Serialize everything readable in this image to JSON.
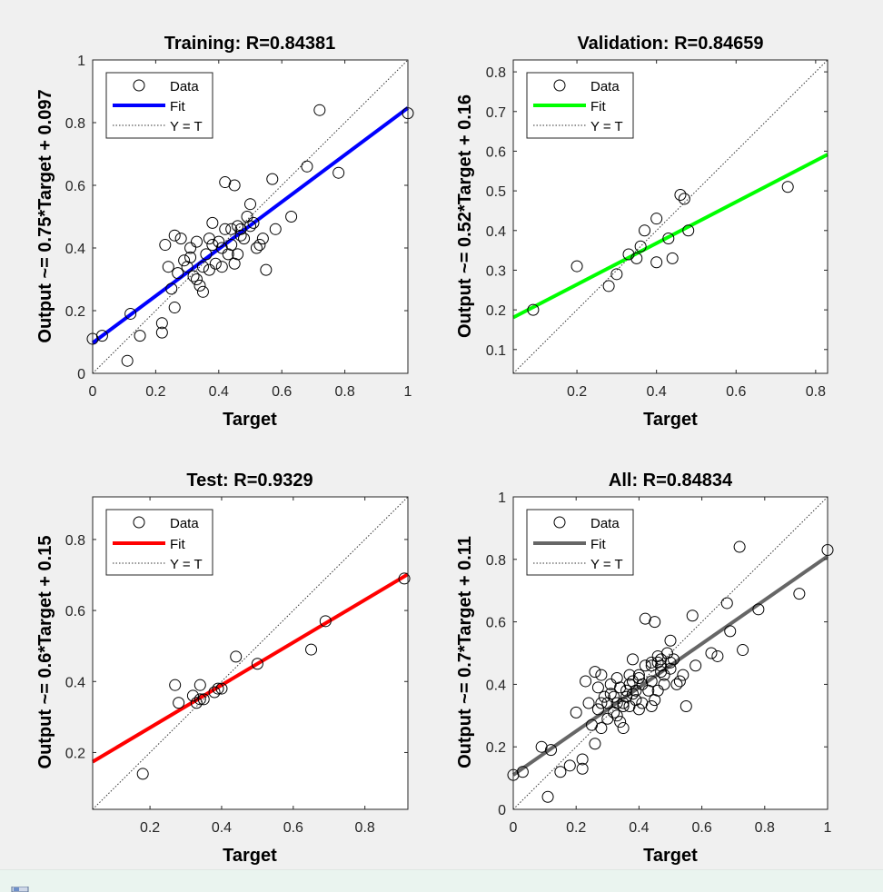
{
  "window": {
    "status_icon": "figure-icon"
  },
  "chart_data": [
    {
      "type": "scatter",
      "title": "Training: R=0.84381",
      "xlabel": "Target",
      "ylabel": "Output ~= 0.75*Target + 0.097",
      "xlim": [
        0,
        1
      ],
      "ylim": [
        0,
        1
      ],
      "xticks": [
        0,
        0.2,
        0.4,
        0.6,
        0.8,
        1
      ],
      "yticks": [
        0,
        0.2,
        0.4,
        0.6,
        0.8,
        1
      ],
      "xtick_labels": [
        "0",
        "0.2",
        "0.4",
        "0.6",
        "0.8",
        "1"
      ],
      "ytick_labels": [
        "0",
        "0.2",
        "0.4",
        "0.6",
        "0.8",
        "1"
      ],
      "fit": {
        "slope": 0.75,
        "intercept": 0.097,
        "color": "#0000ff"
      },
      "legend": {
        "data": "Data",
        "fit": "Fit",
        "ideal": "Y = T"
      },
      "points": [
        [
          0,
          0.11
        ],
        [
          0.03,
          0.12
        ],
        [
          0.11,
          0.04
        ],
        [
          0.12,
          0.19
        ],
        [
          0.15,
          0.12
        ],
        [
          0.22,
          0.16
        ],
        [
          0.22,
          0.13
        ],
        [
          0.23,
          0.41
        ],
        [
          0.24,
          0.34
        ],
        [
          0.25,
          0.27
        ],
        [
          0.26,
          0.21
        ],
        [
          0.26,
          0.44
        ],
        [
          0.27,
          0.32
        ],
        [
          0.28,
          0.43
        ],
        [
          0.29,
          0.36
        ],
        [
          0.3,
          0.34
        ],
        [
          0.31,
          0.37
        ],
        [
          0.31,
          0.4
        ],
        [
          0.32,
          0.31
        ],
        [
          0.33,
          0.3
        ],
        [
          0.33,
          0.42
        ],
        [
          0.34,
          0.28
        ],
        [
          0.35,
          0.34
        ],
        [
          0.35,
          0.26
        ],
        [
          0.36,
          0.38
        ],
        [
          0.37,
          0.43
        ],
        [
          0.37,
          0.33
        ],
        [
          0.38,
          0.41
        ],
        [
          0.38,
          0.48
        ],
        [
          0.39,
          0.35
        ],
        [
          0.4,
          0.42
        ],
        [
          0.41,
          0.4
        ],
        [
          0.41,
          0.34
        ],
        [
          0.42,
          0.46
        ],
        [
          0.42,
          0.61
        ],
        [
          0.43,
          0.38
        ],
        [
          0.44,
          0.46
        ],
        [
          0.44,
          0.41
        ],
        [
          0.45,
          0.35
        ],
        [
          0.45,
          0.6
        ],
        [
          0.46,
          0.38
        ],
        [
          0.46,
          0.47
        ],
        [
          0.47,
          0.44
        ],
        [
          0.47,
          0.46
        ],
        [
          0.48,
          0.43
        ],
        [
          0.49,
          0.5
        ],
        [
          0.5,
          0.47
        ],
        [
          0.5,
          0.54
        ],
        [
          0.51,
          0.48
        ],
        [
          0.52,
          0.4
        ],
        [
          0.53,
          0.41
        ],
        [
          0.54,
          0.43
        ],
        [
          0.55,
          0.33
        ],
        [
          0.57,
          0.62
        ],
        [
          0.58,
          0.46
        ],
        [
          0.63,
          0.5
        ],
        [
          0.68,
          0.66
        ],
        [
          0.72,
          0.84
        ],
        [
          0.78,
          0.64
        ],
        [
          1,
          0.83
        ]
      ]
    },
    {
      "type": "scatter",
      "title": "Validation: R=0.84659",
      "xlabel": "Target",
      "ylabel": "Output ~= 0.52*Target + 0.16",
      "xlim": [
        0.04,
        0.83
      ],
      "ylim": [
        0.04,
        0.83
      ],
      "xticks": [
        0.2,
        0.4,
        0.6,
        0.8
      ],
      "yticks": [
        0.1,
        0.2,
        0.3,
        0.4,
        0.5,
        0.6,
        0.7,
        0.8
      ],
      "xtick_labels": [
        "0.2",
        "0.4",
        "0.6",
        "0.8"
      ],
      "ytick_labels": [
        "0.1",
        "0.2",
        "0.3",
        "0.4",
        "0.5",
        "0.6",
        "0.7",
        "0.8"
      ],
      "fit": {
        "slope": 0.52,
        "intercept": 0.16,
        "color": "#00ff00"
      },
      "legend": {
        "data": "Data",
        "fit": "Fit",
        "ideal": "Y = T"
      },
      "points": [
        [
          0.09,
          0.2
        ],
        [
          0.2,
          0.31
        ],
        [
          0.28,
          0.26
        ],
        [
          0.3,
          0.29
        ],
        [
          0.33,
          0.34
        ],
        [
          0.35,
          0.33
        ],
        [
          0.36,
          0.36
        ],
        [
          0.37,
          0.4
        ],
        [
          0.4,
          0.32
        ],
        [
          0.4,
          0.43
        ],
        [
          0.43,
          0.38
        ],
        [
          0.44,
          0.33
        ],
        [
          0.46,
          0.49
        ],
        [
          0.47,
          0.48
        ],
        [
          0.48,
          0.4
        ],
        [
          0.73,
          0.51
        ]
      ]
    },
    {
      "type": "scatter",
      "title": "Test: R=0.9329",
      "xlabel": "Target",
      "ylabel": "Output ~= 0.6*Target + 0.15",
      "xlim": [
        0.04,
        0.92
      ],
      "ylim": [
        0.04,
        0.92
      ],
      "xticks": [
        0.2,
        0.4,
        0.6,
        0.8
      ],
      "yticks": [
        0.2,
        0.4,
        0.6,
        0.8
      ],
      "xtick_labels": [
        "0.2",
        "0.4",
        "0.6",
        "0.8"
      ],
      "ytick_labels": [
        "0.2",
        "0.4",
        "0.6",
        "0.8"
      ],
      "fit": {
        "slope": 0.6,
        "intercept": 0.15,
        "color": "#ff0000"
      },
      "legend": {
        "data": "Data",
        "fit": "Fit",
        "ideal": "Y = T"
      },
      "points": [
        [
          0.18,
          0.14
        ],
        [
          0.27,
          0.39
        ],
        [
          0.28,
          0.34
        ],
        [
          0.32,
          0.36
        ],
        [
          0.33,
          0.34
        ],
        [
          0.34,
          0.39
        ],
        [
          0.34,
          0.35
        ],
        [
          0.35,
          0.35
        ],
        [
          0.38,
          0.37
        ],
        [
          0.39,
          0.38
        ],
        [
          0.4,
          0.38
        ],
        [
          0.44,
          0.47
        ],
        [
          0.5,
          0.45
        ],
        [
          0.65,
          0.49
        ],
        [
          0.69,
          0.57
        ],
        [
          0.91,
          0.69
        ]
      ]
    },
    {
      "type": "scatter",
      "title": "All: R=0.84834",
      "xlabel": "Target",
      "ylabel": "Output ~= 0.7*Target + 0.11",
      "xlim": [
        0,
        1
      ],
      "ylim": [
        0,
        1
      ],
      "xticks": [
        0,
        0.2,
        0.4,
        0.6,
        0.8,
        1
      ],
      "yticks": [
        0,
        0.2,
        0.4,
        0.6,
        0.8,
        1
      ],
      "xtick_labels": [
        "0",
        "0.2",
        "0.4",
        "0.6",
        "0.8",
        "1"
      ],
      "ytick_labels": [
        "0",
        "0.2",
        "0.4",
        "0.6",
        "0.8",
        "1"
      ],
      "fit": {
        "slope": 0.7,
        "intercept": 0.11,
        "color": "#666666"
      },
      "legend": {
        "data": "Data",
        "fit": "Fit",
        "ideal": "Y = T"
      },
      "points": [
        [
          0,
          0.11
        ],
        [
          0.03,
          0.12
        ],
        [
          0.09,
          0.2
        ],
        [
          0.11,
          0.04
        ],
        [
          0.12,
          0.19
        ],
        [
          0.15,
          0.12
        ],
        [
          0.18,
          0.14
        ],
        [
          0.2,
          0.31
        ],
        [
          0.22,
          0.16
        ],
        [
          0.22,
          0.13
        ],
        [
          0.23,
          0.41
        ],
        [
          0.24,
          0.34
        ],
        [
          0.25,
          0.27
        ],
        [
          0.26,
          0.21
        ],
        [
          0.26,
          0.44
        ],
        [
          0.27,
          0.32
        ],
        [
          0.27,
          0.39
        ],
        [
          0.28,
          0.43
        ],
        [
          0.28,
          0.26
        ],
        [
          0.28,
          0.34
        ],
        [
          0.29,
          0.36
        ],
        [
          0.3,
          0.34
        ],
        [
          0.3,
          0.29
        ],
        [
          0.31,
          0.37
        ],
        [
          0.31,
          0.4
        ],
        [
          0.32,
          0.31
        ],
        [
          0.32,
          0.36
        ],
        [
          0.33,
          0.3
        ],
        [
          0.33,
          0.42
        ],
        [
          0.33,
          0.34
        ],
        [
          0.34,
          0.28
        ],
        [
          0.34,
          0.39
        ],
        [
          0.35,
          0.34
        ],
        [
          0.35,
          0.26
        ],
        [
          0.35,
          0.33
        ],
        [
          0.36,
          0.38
        ],
        [
          0.36,
          0.36
        ],
        [
          0.37,
          0.43
        ],
        [
          0.37,
          0.33
        ],
        [
          0.37,
          0.4
        ],
        [
          0.38,
          0.41
        ],
        [
          0.38,
          0.48
        ],
        [
          0.38,
          0.37
        ],
        [
          0.39,
          0.35
        ],
        [
          0.39,
          0.38
        ],
        [
          0.4,
          0.42
        ],
        [
          0.4,
          0.32
        ],
        [
          0.4,
          0.43
        ],
        [
          0.41,
          0.4
        ],
        [
          0.41,
          0.34
        ],
        [
          0.42,
          0.46
        ],
        [
          0.42,
          0.61
        ],
        [
          0.43,
          0.38
        ],
        [
          0.44,
          0.46
        ],
        [
          0.44,
          0.41
        ],
        [
          0.44,
          0.47
        ],
        [
          0.44,
          0.33
        ],
        [
          0.45,
          0.35
        ],
        [
          0.45,
          0.6
        ],
        [
          0.46,
          0.38
        ],
        [
          0.46,
          0.47
        ],
        [
          0.46,
          0.49
        ],
        [
          0.47,
          0.44
        ],
        [
          0.47,
          0.46
        ],
        [
          0.47,
          0.48
        ],
        [
          0.48,
          0.43
        ],
        [
          0.48,
          0.4
        ],
        [
          0.49,
          0.5
        ],
        [
          0.5,
          0.47
        ],
        [
          0.5,
          0.54
        ],
        [
          0.5,
          0.45
        ],
        [
          0.51,
          0.48
        ],
        [
          0.52,
          0.4
        ],
        [
          0.53,
          0.41
        ],
        [
          0.54,
          0.43
        ],
        [
          0.55,
          0.33
        ],
        [
          0.57,
          0.62
        ],
        [
          0.58,
          0.46
        ],
        [
          0.63,
          0.5
        ],
        [
          0.65,
          0.49
        ],
        [
          0.68,
          0.66
        ],
        [
          0.69,
          0.57
        ],
        [
          0.72,
          0.84
        ],
        [
          0.73,
          0.51
        ],
        [
          0.78,
          0.64
        ],
        [
          0.91,
          0.69
        ],
        [
          1,
          0.83
        ]
      ]
    }
  ]
}
